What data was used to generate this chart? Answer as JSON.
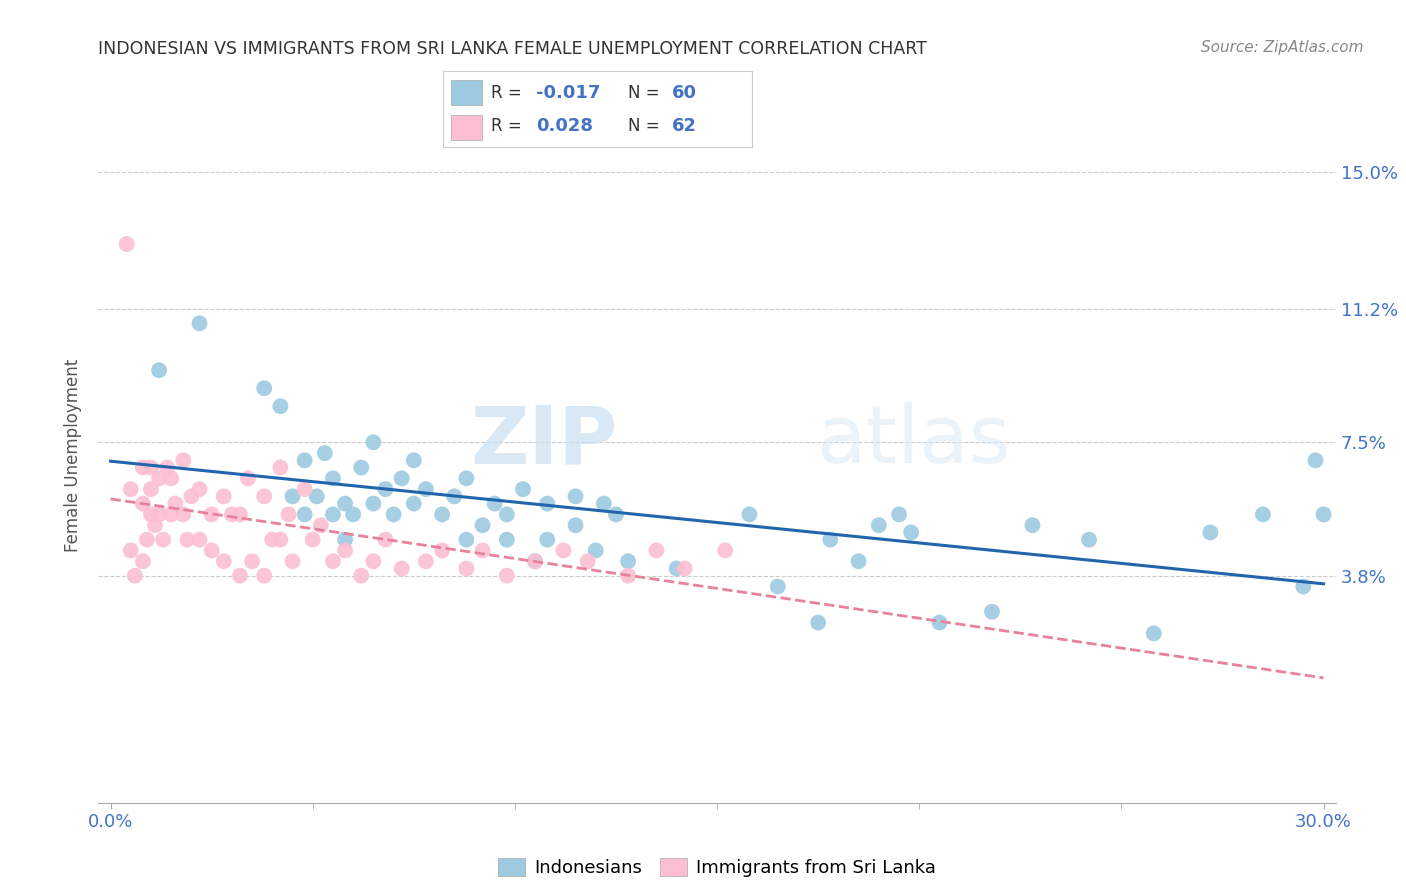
{
  "title": "INDONESIAN VS IMMIGRANTS FROM SRI LANKA FEMALE UNEMPLOYMENT CORRELATION CHART",
  "source": "Source: ZipAtlas.com",
  "ylabel": "Female Unemployment",
  "ytick_labels": [
    "15.0%",
    "11.2%",
    "7.5%",
    "3.8%"
  ],
  "ytick_values": [
    0.15,
    0.112,
    0.075,
    0.038
  ],
  "xlim": [
    0.0,
    0.3
  ],
  "ylim": [
    -0.025,
    0.168
  ],
  "legend_blue_r": "-0.017",
  "legend_blue_n": "60",
  "legend_pink_r": "0.028",
  "legend_pink_n": "62",
  "blue_color": "#9ecae1",
  "pink_color": "#fcbfd2",
  "blue_line_color": "#2166ac",
  "pink_line_color": "#e8829a",
  "watermark_zip": "ZIP",
  "watermark_atlas": "atlas",
  "blue_scatter_x": [
    0.012,
    0.022,
    0.038,
    0.042,
    0.045,
    0.048,
    0.048,
    0.051,
    0.053,
    0.055,
    0.055,
    0.058,
    0.058,
    0.06,
    0.062,
    0.065,
    0.065,
    0.068,
    0.07,
    0.072,
    0.075,
    0.075,
    0.078,
    0.082,
    0.085,
    0.088,
    0.088,
    0.092,
    0.095,
    0.098,
    0.098,
    0.102,
    0.105,
    0.108,
    0.108,
    0.115,
    0.115,
    0.12,
    0.122,
    0.125,
    0.128,
    0.14,
    0.158,
    0.165,
    0.175,
    0.178,
    0.185,
    0.19,
    0.195,
    0.198,
    0.205,
    0.218,
    0.228,
    0.242,
    0.258,
    0.272,
    0.285,
    0.295,
    0.298,
    0.3
  ],
  "blue_scatter_y": [
    0.095,
    0.108,
    0.09,
    0.085,
    0.06,
    0.07,
    0.055,
    0.06,
    0.072,
    0.055,
    0.065,
    0.058,
    0.048,
    0.055,
    0.068,
    0.058,
    0.075,
    0.062,
    0.055,
    0.065,
    0.058,
    0.07,
    0.062,
    0.055,
    0.06,
    0.048,
    0.065,
    0.052,
    0.058,
    0.055,
    0.048,
    0.062,
    0.042,
    0.058,
    0.048,
    0.052,
    0.06,
    0.045,
    0.058,
    0.055,
    0.042,
    0.04,
    0.055,
    0.035,
    0.025,
    0.048,
    0.042,
    0.052,
    0.055,
    0.05,
    0.025,
    0.028,
    0.052,
    0.048,
    0.022,
    0.05,
    0.055,
    0.035,
    0.07,
    0.055
  ],
  "pink_scatter_x": [
    0.004,
    0.005,
    0.005,
    0.006,
    0.008,
    0.008,
    0.008,
    0.009,
    0.01,
    0.01,
    0.01,
    0.011,
    0.012,
    0.012,
    0.013,
    0.014,
    0.015,
    0.015,
    0.016,
    0.018,
    0.018,
    0.019,
    0.02,
    0.022,
    0.022,
    0.025,
    0.025,
    0.028,
    0.028,
    0.03,
    0.032,
    0.032,
    0.034,
    0.035,
    0.038,
    0.038,
    0.04,
    0.042,
    0.042,
    0.044,
    0.045,
    0.048,
    0.05,
    0.052,
    0.055,
    0.058,
    0.062,
    0.065,
    0.068,
    0.072,
    0.078,
    0.082,
    0.088,
    0.092,
    0.098,
    0.105,
    0.112,
    0.118,
    0.128,
    0.135,
    0.142,
    0.152
  ],
  "pink_scatter_y": [
    0.13,
    0.062,
    0.045,
    0.038,
    0.068,
    0.058,
    0.042,
    0.048,
    0.068,
    0.062,
    0.055,
    0.052,
    0.065,
    0.055,
    0.048,
    0.068,
    0.065,
    0.055,
    0.058,
    0.07,
    0.055,
    0.048,
    0.06,
    0.062,
    0.048,
    0.055,
    0.045,
    0.06,
    0.042,
    0.055,
    0.055,
    0.038,
    0.065,
    0.042,
    0.06,
    0.038,
    0.048,
    0.068,
    0.048,
    0.055,
    0.042,
    0.062,
    0.048,
    0.052,
    0.042,
    0.045,
    0.038,
    0.042,
    0.048,
    0.04,
    0.042,
    0.045,
    0.04,
    0.045,
    0.038,
    0.042,
    0.045,
    0.042,
    0.038,
    0.045,
    0.04,
    0.045
  ]
}
